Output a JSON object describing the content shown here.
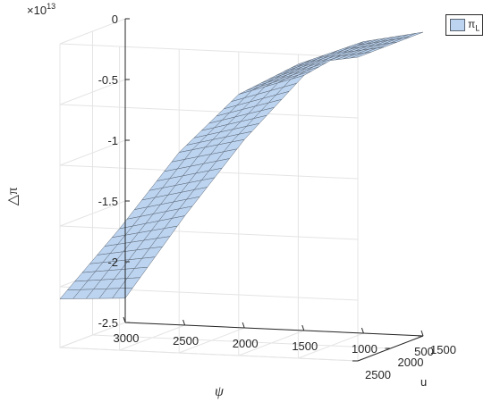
{
  "chart_data": {
    "type": "surface",
    "title": "",
    "xlabel": "ψ",
    "ylabel": "u",
    "zlabel": "△π",
    "exponent_label": "×10",
    "exponent_value": "13",
    "xlim": [
      500,
      3000
    ],
    "ylim": [
      1500,
      2500
    ],
    "zlim": [
      -2.5,
      0
    ],
    "x_ticks": [
      "3000",
      "2500",
      "2000",
      "1500",
      "1000",
      "500"
    ],
    "y_ticks": [
      "2500",
      "2000",
      "1500"
    ],
    "z_ticks": [
      "0",
      "-0.5",
      "-1",
      "-1.5",
      "-2",
      "-2.5"
    ],
    "grid": true,
    "legend": {
      "position": "top-right",
      "entries": [
        {
          "name": "π",
          "subscript": "L"
        }
      ]
    },
    "series": [
      {
        "name": "π_L",
        "color": "#bcd4f0",
        "edge_color": "#5a6472",
        "psi": [
          500,
          1000,
          1500,
          2000,
          2500,
          3000
        ],
        "u": [
          1500,
          2500
        ],
        "z_at_u1500": [
          0,
          -0.1,
          -0.4,
          -0.95,
          -1.6,
          -2.3
        ],
        "z_at_u2500": [
          0,
          -0.08,
          -0.35,
          -0.85,
          -1.5,
          -2.1
        ]
      }
    ]
  }
}
